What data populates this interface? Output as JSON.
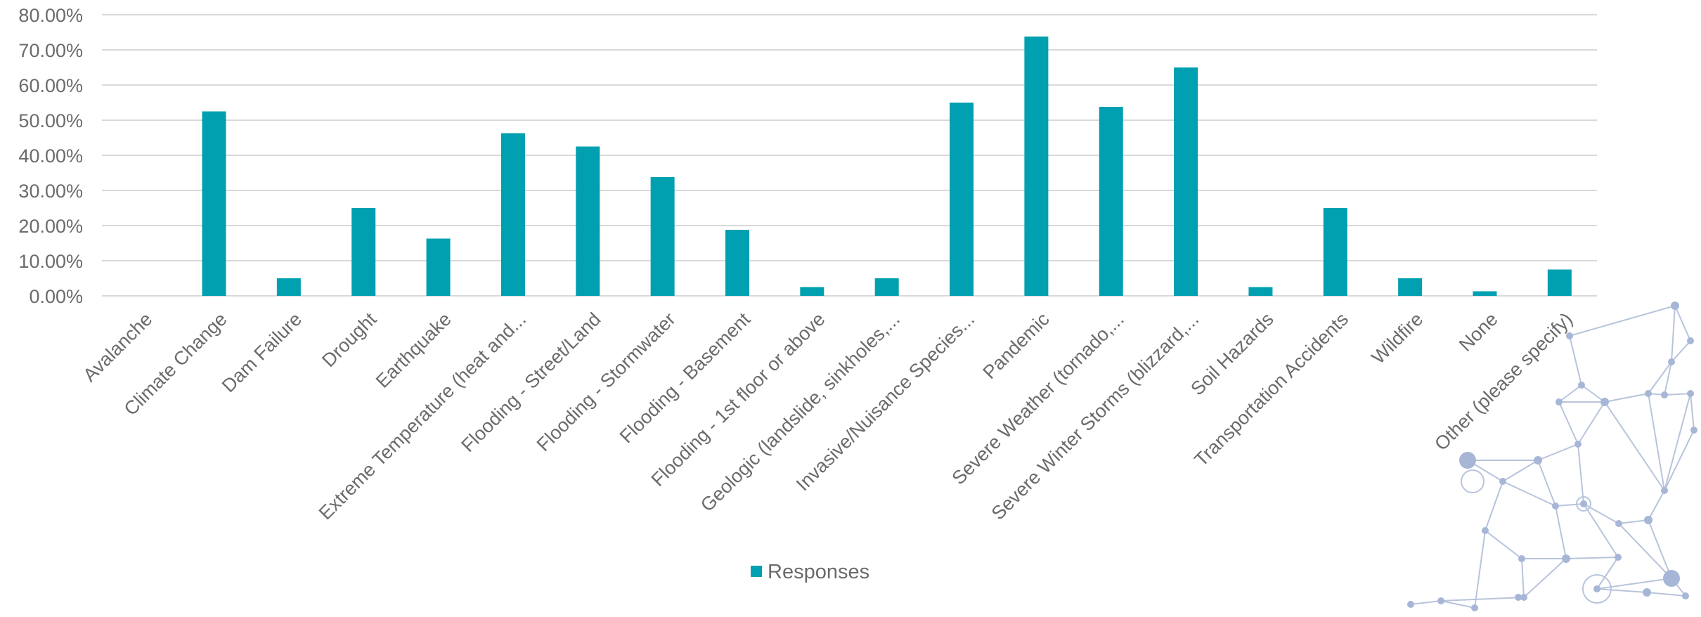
{
  "chart_data": {
    "type": "bar",
    "categories": [
      "Avalanche",
      "Climate Change",
      "Dam Failure",
      "Drought",
      "Earthquake",
      "Extreme Temperature (heat and...",
      "Flooding - Street/Land",
      "Flooding - Stormwater",
      "Flooding - Basement",
      "Flooding - 1st floor or above",
      "Geologic (landslide, sinkholes,...",
      "Invasive/Nuisance Species...",
      "Pandemic",
      "Severe Weather (tornado,...",
      "Severe Winter Storms (blizzard,...",
      "Soil Hazards",
      "Transportation Accidents",
      "Wildfire",
      "None",
      "Other (please specify)"
    ],
    "series": [
      {
        "name": "Responses",
        "values": [
          0,
          52.5,
          5.0,
          25.0,
          16.3,
          46.3,
          42.5,
          33.8,
          18.8,
          2.5,
          5.0,
          55.0,
          73.8,
          53.8,
          65.0,
          2.5,
          25.0,
          5.0,
          1.3,
          7.5
        ]
      }
    ],
    "y_ticks": [
      "0.00%",
      "10.00%",
      "20.00%",
      "30.00%",
      "40.00%",
      "50.00%",
      "60.00%",
      "70.00%",
      "80.00%"
    ],
    "ylim": [
      0,
      80
    ],
    "grid": true,
    "legend": "bottom-center",
    "bar_color": "#00A0B0",
    "title": "",
    "xlabel": "",
    "ylabel": ""
  }
}
